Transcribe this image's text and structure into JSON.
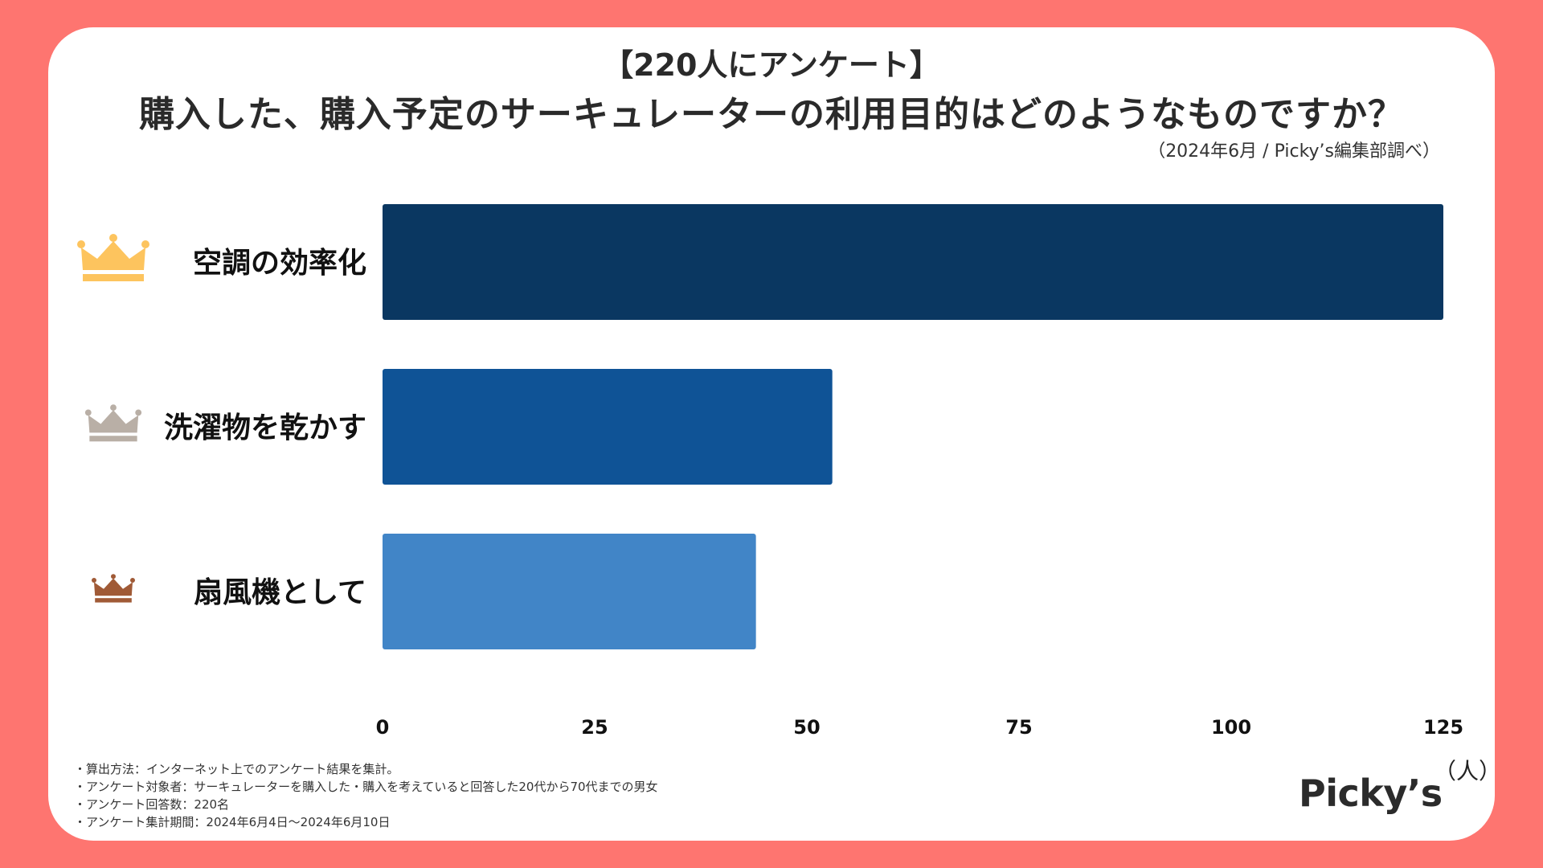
{
  "header": {
    "survey_label": "【220人にアンケート】",
    "title": "購入した、購入予定のサーキュレーターの利用目的はどのようなものですか？",
    "source": "（2024年6月 / Picky’s編集部調べ）"
  },
  "chart_data": {
    "type": "bar",
    "orientation": "horizontal",
    "title": "購入した、購入予定のサーキュレーターの利用目的はどのようなものですか？",
    "categories": [
      "空調の効率化",
      "洗濯物を乾かす",
      "扇風機として"
    ],
    "values": [
      125,
      53,
      44
    ],
    "bar_colors": [
      "#0A3761",
      "#0F5396",
      "#4185C7"
    ],
    "crown_colors": [
      "#FDC45E",
      "#B9AFA6",
      "#A05A36"
    ],
    "xlim": [
      0,
      125
    ],
    "xticks": [
      "0",
      "25",
      "50",
      "75",
      "100",
      "125"
    ],
    "xlabel": "（人）",
    "ylabel": "",
    "grid": false,
    "legend": "none"
  },
  "notes": [
    "・算出方法：インターネット上でのアンケート結果を集計。",
    "・アンケート対象者：サーキュレーターを購入した・購入を考えていると回答した20代から70代までの男女",
    "・アンケート回答数：220名",
    "・アンケート集計期間：2024年6月4日〜2024年6月10日"
  ],
  "brand": "Picky’s"
}
